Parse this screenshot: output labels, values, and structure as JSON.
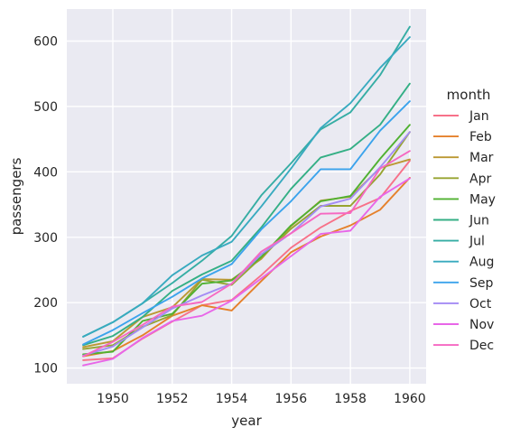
{
  "chart_data": {
    "type": "line",
    "xlabel": "year",
    "ylabel": "passengers",
    "legend_title": "month",
    "legend_position": "right",
    "grid": true,
    "background": "#EAEAF2",
    "xlim": [
      1948.45,
      1960.55
    ],
    "ylim": [
      76,
      649
    ],
    "xticks": [
      1950,
      1952,
      1954,
      1956,
      1958,
      1960
    ],
    "xtick_labels": [
      "1950",
      "1952",
      "1954",
      "1956",
      "1958",
      "1960"
    ],
    "yticks": [
      100,
      200,
      300,
      400,
      500,
      600
    ],
    "ytick_labels": [
      "100",
      "200",
      "300",
      "400",
      "500",
      "600"
    ],
    "x": [
      1949,
      1950,
      1951,
      1952,
      1953,
      1954,
      1955,
      1956,
      1957,
      1958,
      1959,
      1960
    ],
    "series": [
      {
        "name": "Jan",
        "color": "#F77189",
        "values": [
          112,
          115,
          145,
          171,
          196,
          204,
          242,
          284,
          315,
          340,
          360,
          417
        ]
      },
      {
        "name": "Feb",
        "color": "#E5812C",
        "values": [
          118,
          126,
          150,
          180,
          196,
          188,
          233,
          277,
          301,
          318,
          342,
          391
        ]
      },
      {
        "name": "Mar",
        "color": "#BB9832",
        "values": [
          132,
          141,
          178,
          193,
          236,
          235,
          267,
          317,
          356,
          362,
          406,
          419
        ]
      },
      {
        "name": "Apr",
        "color": "#97A431",
        "values": [
          129,
          135,
          163,
          181,
          235,
          227,
          269,
          313,
          348,
          348,
          396,
          461
        ]
      },
      {
        "name": "May",
        "color": "#50B131",
        "values": [
          121,
          125,
          172,
          183,
          229,
          234,
          270,
          318,
          355,
          363,
          420,
          472
        ]
      },
      {
        "name": "Jun",
        "color": "#34AF85",
        "values": [
          135,
          149,
          178,
          218,
          243,
          264,
          315,
          374,
          422,
          435,
          472,
          535
        ]
      },
      {
        "name": "Jul",
        "color": "#36ADA4",
        "values": [
          148,
          170,
          199,
          230,
          264,
          302,
          364,
          413,
          465,
          491,
          548,
          622
        ]
      },
      {
        "name": "Aug",
        "color": "#38AABF",
        "values": [
          148,
          170,
          199,
          242,
          272,
          293,
          347,
          405,
          467,
          505,
          559,
          606
        ]
      },
      {
        "name": "Sep",
        "color": "#3BA3EC",
        "values": [
          136,
          158,
          184,
          209,
          237,
          259,
          312,
          355,
          404,
          404,
          463,
          508
        ]
      },
      {
        "name": "Oct",
        "color": "#A48CF4",
        "values": [
          119,
          133,
          162,
          191,
          211,
          229,
          274,
          306,
          347,
          359,
          407,
          461
        ]
      },
      {
        "name": "Nov",
        "color": "#E866E8",
        "values": [
          104,
          114,
          146,
          172,
          180,
          203,
          237,
          271,
          305,
          310,
          362,
          390
        ]
      },
      {
        "name": "Dec",
        "color": "#F668C2",
        "values": [
          118,
          140,
          166,
          194,
          201,
          229,
          278,
          306,
          336,
          337,
          405,
          432
        ]
      }
    ]
  }
}
